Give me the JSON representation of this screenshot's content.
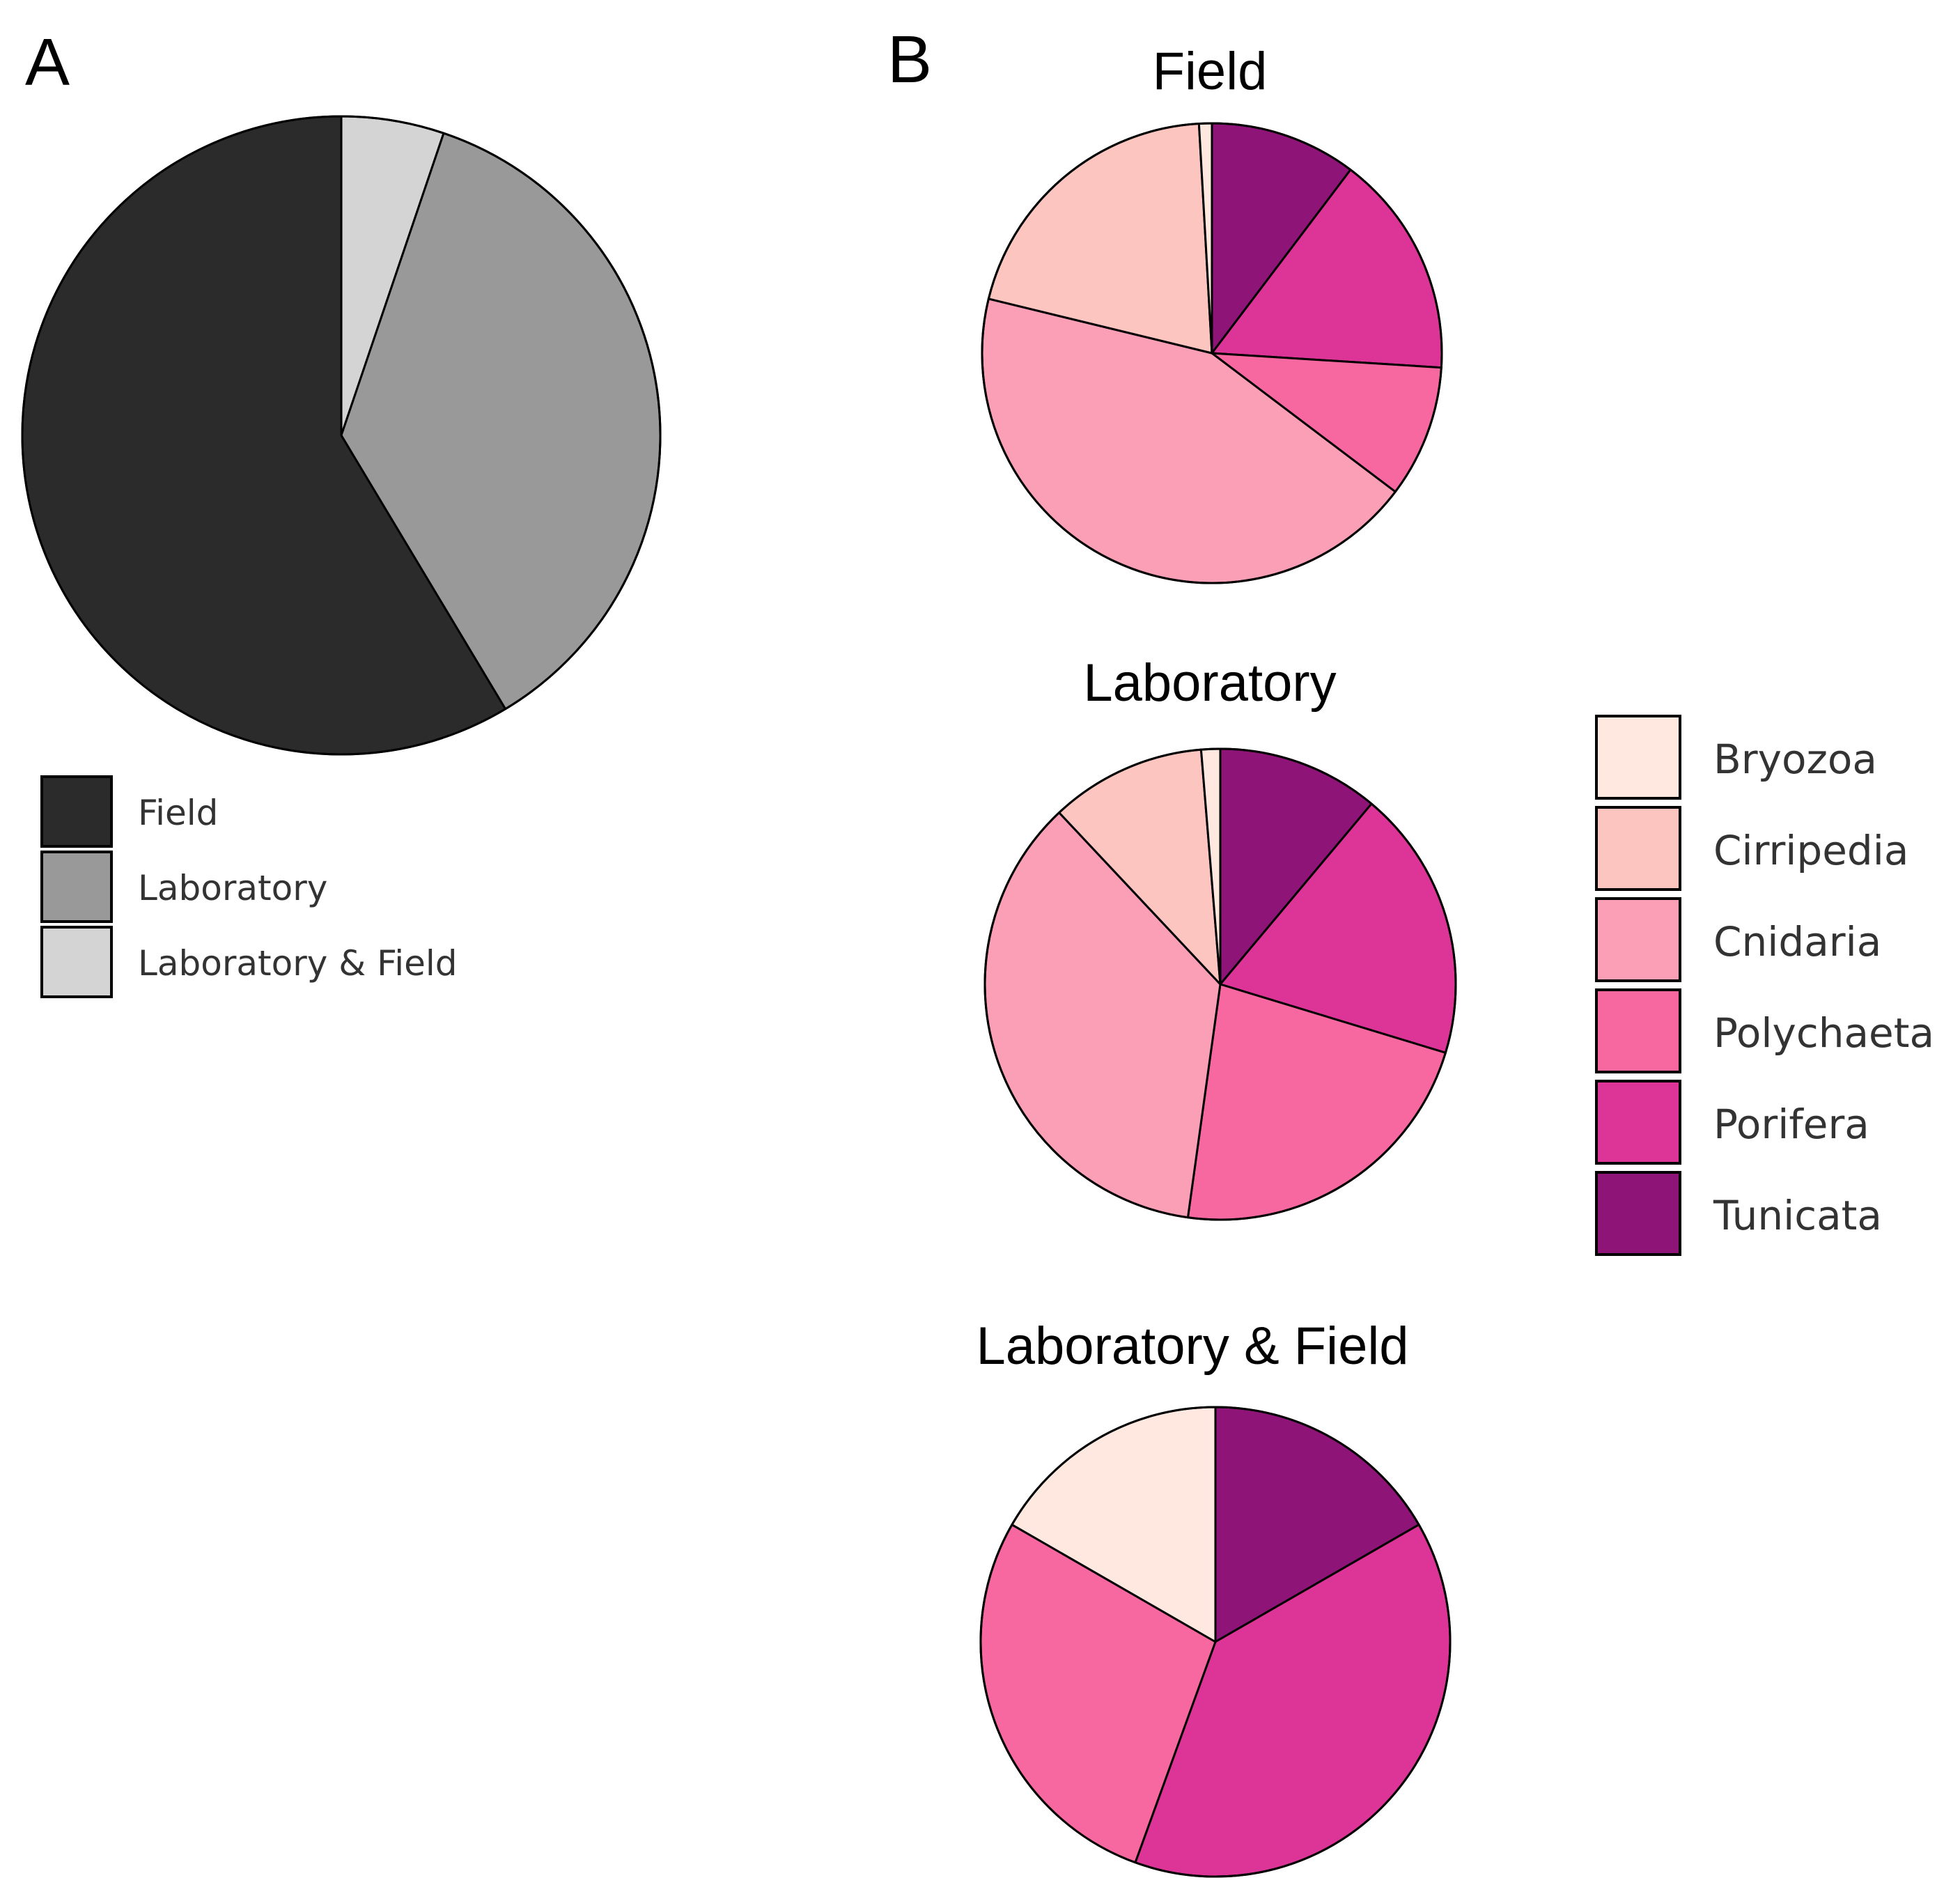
{
  "colors": {
    "Field": "#2b2b2b",
    "Laboratory": "#999999",
    "Laboratory & Field": "#d4d4d4",
    "Bryozoa": "#fee8e0",
    "Cirripedia": "#fcc5c0",
    "Cnidaria": "#fa9fb5",
    "Polychaeta": "#f768a1",
    "Porifera": "#dd3497",
    "Tunicata": "#8e1577"
  },
  "chart_data": [
    {
      "type": "pie",
      "panel": "A",
      "title": "",
      "start_angle": "12 o'clock",
      "direction": "clockwise",
      "slice_order": [
        "Laboratory & Field",
        "Laboratory",
        "Field"
      ],
      "slices": [
        {
          "label": "Field",
          "value": 58.6
        },
        {
          "label": "Laboratory",
          "value": 36.2
        },
        {
          "label": "Laboratory & Field",
          "value": 5.2
        }
      ],
      "legend": [
        "Field",
        "Laboratory",
        "Laboratory & Field"
      ],
      "legend_position": "bottom-left"
    },
    {
      "type": "pie",
      "panel": "B",
      "title": "Field",
      "start_angle": "12 o'clock",
      "direction": "clockwise",
      "slice_order": [
        "Tunicata",
        "Porifera",
        "Polychaeta",
        "Cnidaria",
        "Cirripedia",
        "Bryozoa"
      ],
      "slices": [
        {
          "label": "Bryozoa",
          "value": 0.9
        },
        {
          "label": "Cirripedia",
          "value": 20.3
        },
        {
          "label": "Cnidaria",
          "value": 43.5
        },
        {
          "label": "Polychaeta",
          "value": 9.3
        },
        {
          "label": "Porifera",
          "value": 15.7
        },
        {
          "label": "Tunicata",
          "value": 10.3
        }
      ]
    },
    {
      "type": "pie",
      "panel": "B",
      "title": "Laboratory",
      "start_angle": "12 o'clock",
      "direction": "clockwise",
      "slice_order": [
        "Tunicata",
        "Porifera",
        "Polychaeta",
        "Cnidaria",
        "Cirripedia",
        "Bryozoa"
      ],
      "slices": [
        {
          "label": "Bryozoa",
          "value": 1.3
        },
        {
          "label": "Cirripedia",
          "value": 10.7
        },
        {
          "label": "Cnidaria",
          "value": 35.8
        },
        {
          "label": "Polychaeta",
          "value": 22.5
        },
        {
          "label": "Porifera",
          "value": 18.6
        },
        {
          "label": "Tunicata",
          "value": 11.1
        }
      ]
    },
    {
      "type": "pie",
      "panel": "B",
      "title": "Laboratory & Field",
      "start_angle": "12 o'clock",
      "direction": "clockwise",
      "slice_order": [
        "Tunicata",
        "Porifera",
        "Polychaeta",
        "Cnidaria",
        "Cirripedia",
        "Bryozoa"
      ],
      "slices": [
        {
          "label": "Bryozoa",
          "value": 16.7
        },
        {
          "label": "Cirripedia",
          "value": 0
        },
        {
          "label": "Cnidaria",
          "value": 0
        },
        {
          "label": "Polychaeta",
          "value": 27.8
        },
        {
          "label": "Porifera",
          "value": 38.9
        },
        {
          "label": "Tunicata",
          "value": 16.7
        }
      ],
      "legend": [
        "Bryozoa",
        "Cirripedia",
        "Cnidaria",
        "Polychaeta",
        "Porifera",
        "Tunicata"
      ],
      "legend_position": "right"
    }
  ],
  "panel_labels": [
    "A",
    "B"
  ],
  "legend_a": [
    "Field",
    "Laboratory",
    "Laboratory & Field"
  ],
  "legend_b": [
    "Bryozoa",
    "Cirripedia",
    "Cnidaria",
    "Polychaeta",
    "Porifera",
    "Tunicata"
  ]
}
